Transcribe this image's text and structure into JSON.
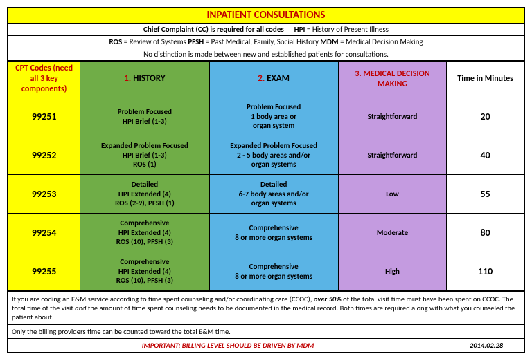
{
  "title": "INPATIENT CONSULTATIONS",
  "sub1_a": "Chief Complaint (CC) is required for all codes",
  "sub1_b": "HPI",
  "sub1_c": " = History of Present Illness",
  "sub2_a": "ROS",
  "sub2_a2": " = Review of Systems    ",
  "sub2_b": "PFSH",
  "sub2_b2": " = Past Medical, Family, Social History    ",
  "sub2_c": "MDM",
  "sub2_c2": " = Medical Decision Making",
  "sub3": "No distinction is made between new and established patients for consultations.",
  "headers": {
    "cpt": "CPT Codes (need all 3 key components)",
    "hist_num": "1.",
    "hist": " HISTORY",
    "exam_num": "2.",
    "exam": " EXAM",
    "mdm_num": "3.",
    "mdm": " MEDICAL DECISION MAKING",
    "time": "Time in Minutes"
  },
  "rows": [
    {
      "cpt": "99251",
      "hist": "Problem Focused\nHPI Brief (1-3)",
      "exam": "Problem Focused\n1 body area or\norgan system",
      "mdm": "Straightforward",
      "time": "20"
    },
    {
      "cpt": "99252",
      "hist": "Expanded Problem Focused\nHPI Brief (1-3)\nROS (1)",
      "exam": "Expanded Problem Focused\n2 - 5 body areas and/or\norgan systems",
      "mdm": "Straightforward",
      "time": "40"
    },
    {
      "cpt": "99253",
      "hist": "Detailed\nHPI Extended (4)\nROS (2-9), PFSH (1)",
      "exam": "Detailed\n6-7 body areas and/or\norgan systems",
      "mdm": "Low",
      "time": "55"
    },
    {
      "cpt": "99254",
      "hist": "Comprehensive\nHPI Extended (4)\nROS (10), PFSH (3)",
      "exam": "Comprehensive\n8 or more organ systems",
      "mdm": "Moderate",
      "time": "80"
    },
    {
      "cpt": "99255",
      "hist": "Comprehensive\nHPI Extended (4)\nROS (10), PFSH (3)",
      "exam": "Comprehensive\n8 or more organ systems",
      "mdm": "High",
      "time": "110"
    }
  ],
  "note1_a": "If you are coding an E&M service according to time spent counseling and/or coordinating care (CCOC), ",
  "note1_b": "over 50%",
  "note1_c": "  of the total visit time must have been spent on CCOC.  The total time of the visit ",
  "note1_d": "and",
  "note1_e": "  the amount of time spent counseling needs to be documented in the medical record. Both times are required along with what you counseled the patient about.",
  "note2": "Only the billing providers time can be counted toward the total E&M time.",
  "important": "IMPORTANT: BILLING LEVEL SHOULD BE DRIVEN BY MDM",
  "date": "2014.02.28"
}
